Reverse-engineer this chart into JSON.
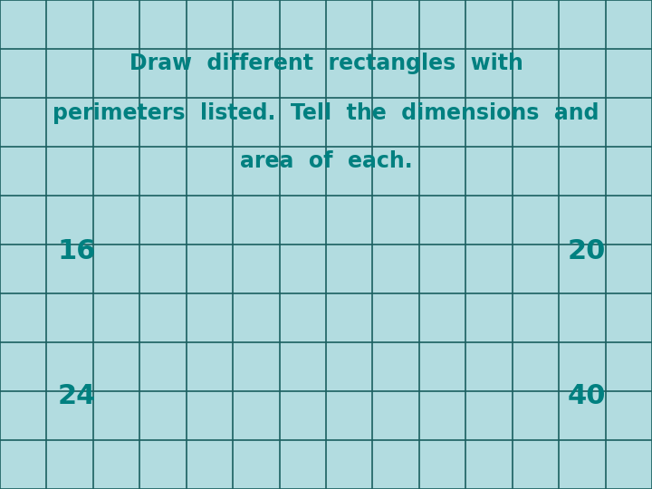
{
  "background_color": "#b2dce0",
  "grid_color": "#1a6060",
  "text_color": "#008080",
  "title_line1": "Draw  different  rectangles  with",
  "title_line2": "perimeters  listed.  Tell  the  dimensions  and",
  "title_line3": "area  of  each.",
  "num_16": "16",
  "num_20": "20",
  "num_24": "24",
  "num_40": "40",
  "grid_cols": 14,
  "grid_rows": 10,
  "font_size_title": 17,
  "font_size_numbers": 22,
  "fig_width": 7.2,
  "fig_height": 5.4,
  "dpi": 100
}
